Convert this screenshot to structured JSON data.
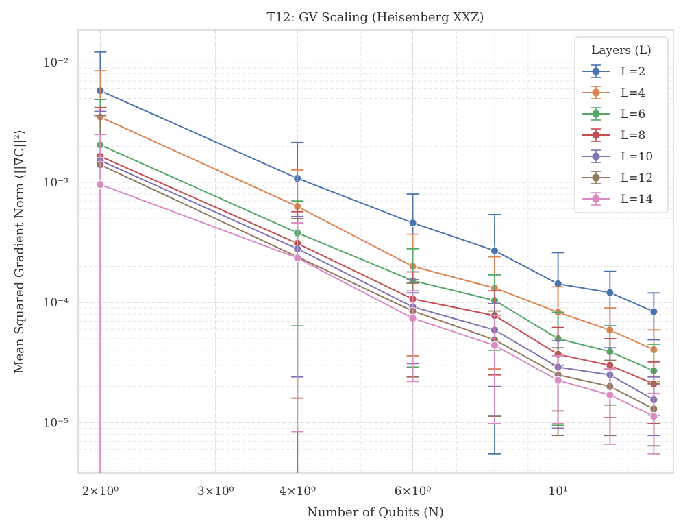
{
  "chart_data": {
    "type": "line",
    "title": "T12: GV Scaling (Heisenberg XXZ)",
    "xlabel": "Number of Qubits (N)",
    "ylabel": "Mean Squared Gradient Norm ⟨||∇C||²⟩",
    "xscale": "log",
    "yscale": "log",
    "xlim": [
      1.85,
      15.0
    ],
    "ylim": [
      3.8e-06,
      0.0185
    ],
    "grid": true,
    "x_ticks": [
      {
        "value": 2,
        "label": "2×10⁰"
      },
      {
        "value": 3,
        "label": "3×10⁰"
      },
      {
        "value": 4,
        "label": "4×10⁰"
      },
      {
        "value": 6,
        "label": "6×10⁰"
      },
      {
        "value": 10,
        "label": "10¹"
      }
    ],
    "y_ticks": [
      {
        "value": 1e-05,
        "label": "10⁻⁵"
      },
      {
        "value": 0.0001,
        "label": "10⁻⁴"
      },
      {
        "value": 0.001,
        "label": "10⁻³"
      },
      {
        "value": 0.01,
        "label": "10⁻²"
      }
    ],
    "legend": {
      "title": "Layers (L)",
      "position": "top-right"
    },
    "x": [
      2,
      4,
      6,
      8,
      10,
      12,
      14
    ],
    "series": [
      {
        "name": "L=2",
        "color": "#4C72B0",
        "values": [
          0.0058,
          0.00108,
          0.00046,
          0.00027,
          0.000143,
          0.000121,
          8.4e-05
        ],
        "err_upper": [
          0.0122,
          0.00215,
          0.0008,
          0.00054,
          0.00026,
          0.000182,
          0.00012
        ],
        "err_lower": [
          3.8e-06,
          3.8e-06,
          0.00012,
          5.5e-06,
          3e-05,
          6.4e-05,
          4.9e-05
        ]
      },
      {
        "name": "L=4",
        "color": "#DD8452",
        "values": [
          0.0035,
          0.00063,
          0.0002,
          0.000132,
          8.3e-05,
          5.9e-05,
          4.05e-05
        ],
        "err_upper": [
          0.0085,
          0.00127,
          0.00037,
          0.00024,
          0.000135,
          9e-05,
          5.9e-05
        ],
        "err_lower": [
          3.8e-06,
          3.8e-06,
          3.6e-05,
          2.8e-05,
          3e-05,
          2.8e-05,
          2.2e-05
        ]
      },
      {
        "name": "L=6",
        "color": "#55A868",
        "values": [
          0.00205,
          0.00038,
          0.000152,
          0.000104,
          5e-05,
          3.9e-05,
          2.7e-05
        ],
        "err_upper": [
          0.0049,
          0.0007,
          0.00028,
          0.00017,
          8.3e-05,
          6.4e-05,
          4.5e-05
        ],
        "err_lower": [
          3.8e-06,
          6.4e-05,
          2.9e-05,
          4e-05,
          9.5e-06,
          1.4e-05,
          1.15e-05
        ]
      },
      {
        "name": "L=8",
        "color": "#C44E52",
        "values": [
          0.00165,
          0.00031,
          0.000107,
          7.8e-05,
          3.7e-05,
          3e-05,
          2.1e-05
        ],
        "err_upper": [
          0.0042,
          0.00057,
          0.00018,
          0.000125,
          6.2e-05,
          5e-05,
          3.2e-05
        ],
        "err_lower": [
          3.8e-06,
          1.6e-05,
          2.4e-05,
          2.5e-05,
          1.25e-05,
          1.1e-05,
          9.8e-06
        ]
      },
      {
        "name": "L=10",
        "color": "#8172B3",
        "values": [
          0.00152,
          0.00028,
          9.2e-05,
          5.9e-05,
          2.9e-05,
          2.5e-05,
          1.55e-05
        ],
        "err_upper": [
          0.0039,
          0.00052,
          0.000155,
          9.8e-05,
          4.8e-05,
          4.2e-05,
          2.4e-05
        ],
        "err_lower": [
          3.8e-06,
          2.4e-05,
          3.1e-05,
          2e-05,
          9e-06,
          7.8e-06,
          7.8e-06
        ]
      },
      {
        "name": "L=12",
        "color": "#937860",
        "values": [
          0.0014,
          0.00024,
          8.5e-05,
          4.9e-05,
          2.5e-05,
          2e-05,
          1.3e-05
        ],
        "err_upper": [
          0.0036,
          0.0005,
          0.000145,
          8.5e-05,
          4.2e-05,
          3.3e-05,
          2.1e-05
        ],
        "err_lower": [
          3.8e-06,
          3.8e-06,
          2.4e-05,
          1.13e-05,
          7.8e-06,
          7.8e-06,
          6.4e-06
        ]
      },
      {
        "name": "L=14",
        "color": "#DA8BC3",
        "values": [
          0.00096,
          0.000235,
          7.4e-05,
          4.4e-05,
          2.25e-05,
          1.7e-05,
          1.13e-05
        ],
        "err_upper": [
          0.0025,
          0.00046,
          0.000125,
          7.8e-05,
          3.6e-05,
          2.8e-05,
          1.75e-05
        ],
        "err_lower": [
          3.8e-06,
          8.4e-06,
          2.2e-05,
          9.8e-06,
          9.8e-06,
          6.6e-06,
          5.5e-06
        ]
      }
    ]
  }
}
